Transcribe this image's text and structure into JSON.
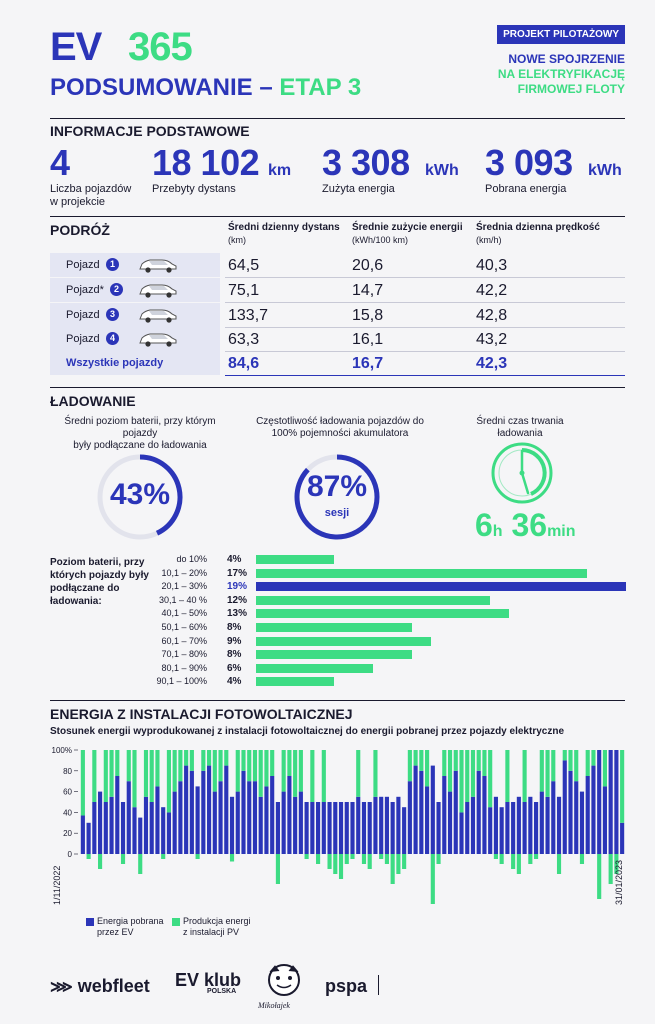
{
  "header": {
    "logo_ev": "EV",
    "logo_365": "365",
    "title": "PODSUMOWANIE –",
    "stage": "ETAP 3",
    "pilot_badge": "PROJEKT PILOTAŻOWY",
    "pilot_line1": "NOWE SPOJRZENIE",
    "pilot_line2": "NA ELEKTRYFIKACJĘ",
    "pilot_line3": "FIRMOWEJ FLOTY"
  },
  "basic": {
    "title": "INFORMACJE PODSTAWOWE",
    "stats": [
      {
        "value": "4",
        "unit": "",
        "label1": "Liczba pojazdów",
        "label2": "w projekcie"
      },
      {
        "value": "18 102",
        "unit": "km",
        "label1": "Przebyty dystans",
        "label2": ""
      },
      {
        "value": "3 308",
        "unit": "kWh",
        "label1": "Zużyta energia",
        "label2": ""
      },
      {
        "value": "3 093",
        "unit": "kWh",
        "label1": "Pobrana energia",
        "label2": ""
      }
    ]
  },
  "travel": {
    "title": "PODRÓŻ",
    "col1": "Średni dzienny dystans",
    "col1_unit": "(km)",
    "col2": "Średnie zużycie energii",
    "col2_unit": "(kWh/100 km)",
    "col3": "Średnia dzienna prędkość",
    "col3_unit": "(km/h)",
    "rows": [
      {
        "label": "Pojazd",
        "num": "1",
        "d": "64,5",
        "e": "20,6",
        "s": "40,3"
      },
      {
        "label": "Pojazd*",
        "num": "2",
        "d": "75,1",
        "e": "14,7",
        "s": "42,2"
      },
      {
        "label": "Pojazd",
        "num": "3",
        "d": "133,7",
        "e": "15,8",
        "s": "42,8"
      },
      {
        "label": "Pojazd",
        "num": "4",
        "d": "63,3",
        "e": "16,1",
        "s": "43,2"
      }
    ],
    "all": {
      "label": "Wszystkie pojazdy",
      "d": "84,6",
      "e": "16,7",
      "s": "42,3"
    }
  },
  "charging": {
    "title": "ŁADOWANIE",
    "cap1a": "Średni poziom baterii, przy którym pojazdy",
    "cap1b": "były podłączane do ładowania",
    "gauge1": "43%",
    "gauge1_value": 43,
    "cap2a": "Częstotliwość ładowania pojazdów do",
    "cap2b": "100% pojemności akumulatora",
    "gauge2": "87%",
    "gauge2_sub": "sesji",
    "gauge2_value": 87,
    "cap3a": "Średni czas trwania",
    "cap3b": "ładowania",
    "time_h": "6",
    "time_h_unit": "h",
    "time_m": "36",
    "time_m_unit": "min",
    "color_blue": "#2b35b8",
    "color_green": "#3ddc84"
  },
  "distribution": {
    "caption": "Poziom baterii, przy których pojazdy były podłączane do ładowania:",
    "categories": [
      "do 10%",
      "10,1 – 20%",
      "20,1 – 30%",
      "30,1 – 40 %",
      "40,1 – 50%",
      "50,1 – 60%",
      "60,1 – 70%",
      "70,1 – 80%",
      "80,1 – 90%",
      "90,1 – 100%"
    ],
    "labels": [
      "4%",
      "17%",
      "19%",
      "12%",
      "13%",
      "8%",
      "9%",
      "8%",
      "6%",
      "4%"
    ],
    "values": [
      4,
      17,
      19,
      12,
      13,
      8,
      9,
      8,
      6,
      4
    ],
    "highlight": 2
  },
  "pv": {
    "title": "ENERGIA Z INSTALACJI FOTOWOLTAICZNEJ",
    "subtitle": "Stosunek energii wyprodukowanej z instalacji fotowoltaicznej do energii pobranej przez pojazdy elektryczne",
    "legend_ev_1": "Energia pobrana",
    "legend_ev_2": "przez EV",
    "legend_pv_1": "Produkcja energi",
    "legend_pv_2": "z instalacji PV"
  },
  "chart_data": {
    "type": "bar",
    "x_start_label": "1/11/2022",
    "x_end_label": "31/01/2023",
    "y_ticks": [
      "0",
      "20",
      "40",
      "60",
      "80",
      "100%"
    ],
    "ylim": [
      -100,
      100
    ],
    "series": [
      {
        "name": "Energia pobrana przez EV",
        "color": "#2b35b8",
        "values": [
          37,
          30,
          50,
          60,
          50,
          55,
          75,
          50,
          70,
          45,
          35,
          55,
          50,
          65,
          45,
          40,
          60,
          70,
          85,
          80,
          65,
          80,
          85,
          60,
          70,
          85,
          55,
          60,
          80,
          70,
          70,
          55,
          65,
          75,
          50,
          60,
          75,
          55,
          60,
          50,
          50,
          50,
          50,
          50,
          50,
          50,
          50,
          50,
          55,
          50,
          50,
          55,
          55,
          55,
          50,
          55,
          45,
          70,
          85,
          80,
          65,
          85,
          50,
          75,
          60,
          80,
          40,
          50,
          55,
          80,
          75,
          45,
          55,
          45,
          50,
          50,
          55,
          50,
          55,
          50,
          60,
          55,
          70,
          55,
          90,
          80,
          70,
          60,
          75,
          85,
          100,
          65,
          100,
          100,
          30
        ]
      },
      {
        "name": "Produkcja energi z instalacji PV",
        "color": "#3ddc84",
        "values": [
          63,
          -10,
          50,
          -30,
          50,
          45,
          25,
          -20,
          30,
          55,
          -40,
          45,
          50,
          35,
          -10,
          60,
          40,
          30,
          15,
          20,
          -10,
          20,
          15,
          40,
          30,
          15,
          -15,
          40,
          20,
          30,
          30,
          45,
          35,
          25,
          -60,
          40,
          25,
          45,
          40,
          -10,
          50,
          -20,
          50,
          -30,
          -40,
          -50,
          -20,
          -10,
          45,
          -20,
          -30,
          45,
          -10,
          -20,
          -60,
          -40,
          -30,
          30,
          15,
          20,
          35,
          -100,
          -20,
          25,
          40,
          20,
          60,
          50,
          45,
          20,
          25,
          55,
          -10,
          -20,
          50,
          -30,
          -40,
          50,
          -20,
          -10,
          40,
          45,
          30,
          -40,
          10,
          20,
          30,
          -20,
          25,
          15,
          -90,
          35,
          -60,
          -40,
          70
        ]
      }
    ]
  },
  "footer": {
    "webfleet": "webfleet",
    "evklub": "EV klub",
    "evklub_sub": "POLSKA",
    "mikolajek": "Mikołajek",
    "pspa": "pspa"
  }
}
